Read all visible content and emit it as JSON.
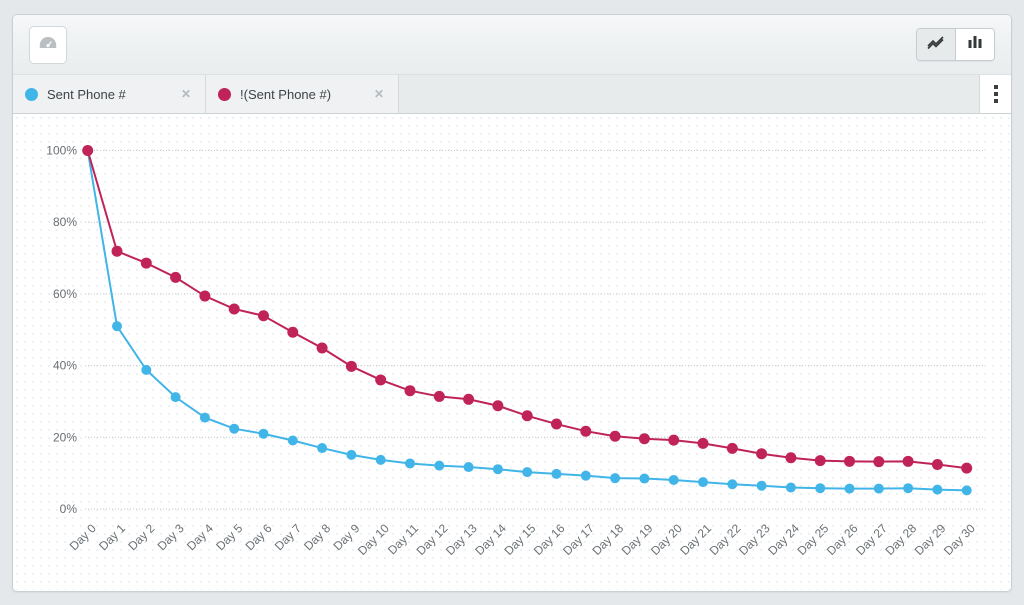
{
  "toolbar": {
    "dashboard_button": {
      "icon": "gauge-icon"
    },
    "chart_type_toggle": {
      "line_button": {
        "icon": "line-chart-icon",
        "selected": true
      },
      "bar_button": {
        "icon": "bar-chart-icon",
        "selected": false
      }
    }
  },
  "tab_bar": {
    "tabs": [
      {
        "label": "Sent Phone #",
        "color": "#41b5e8",
        "close": "✕"
      },
      {
        "label": "!(Sent Phone #)",
        "color": "#bf2357",
        "close": "✕"
      }
    ],
    "overflow_menu_icon": "kebab-menu-icon"
  },
  "chart_data": {
    "type": "line",
    "x": [
      "Day 0",
      "Day 1",
      "Day 2",
      "Day 3",
      "Day 4",
      "Day 5",
      "Day 6",
      "Day 7",
      "Day 8",
      "Day 9",
      "Day 10",
      "Day 11",
      "Day 12",
      "Day 13",
      "Day 14",
      "Day 15",
      "Day 16",
      "Day 17",
      "Day 18",
      "Day 19",
      "Day 20",
      "Day 21",
      "Day 22",
      "Day 23",
      "Day 24",
      "Day 25",
      "Day 26",
      "Day 27",
      "Day 28",
      "Day 29",
      "Day 30"
    ],
    "yticks": [
      "0%",
      "20%",
      "40%",
      "60%",
      "80%",
      "100%"
    ],
    "ylim": [
      0,
      100
    ],
    "grid": "horizontal-dotted",
    "legend_position": "tabs-top",
    "series": [
      {
        "name": "Sent Phone #",
        "color": "#41b5e8",
        "values": [
          100,
          51,
          38.8,
          31.2,
          25.5,
          22.4,
          21,
          19.1,
          17,
          15.1,
          13.7,
          12.7,
          12.1,
          11.7,
          11.1,
          10.3,
          9.8,
          9.3,
          8.6,
          8.5,
          8.1,
          7.5,
          6.9,
          6.5,
          6,
          5.8,
          5.7,
          5.7,
          5.8,
          5.4,
          5.2
        ]
      },
      {
        "name": "!(Sent Phone #)",
        "color": "#bf2357",
        "values": [
          100,
          71.9,
          68.6,
          64.6,
          59.4,
          55.8,
          53.9,
          49.3,
          44.9,
          39.8,
          36,
          33,
          31.4,
          30.6,
          28.8,
          26,
          23.7,
          21.7,
          20.3,
          19.6,
          19.2,
          18.3,
          16.9,
          15.4,
          14.3,
          13.5,
          13.3,
          13.2,
          13.3,
          12.4,
          11.4
        ]
      }
    ]
  }
}
